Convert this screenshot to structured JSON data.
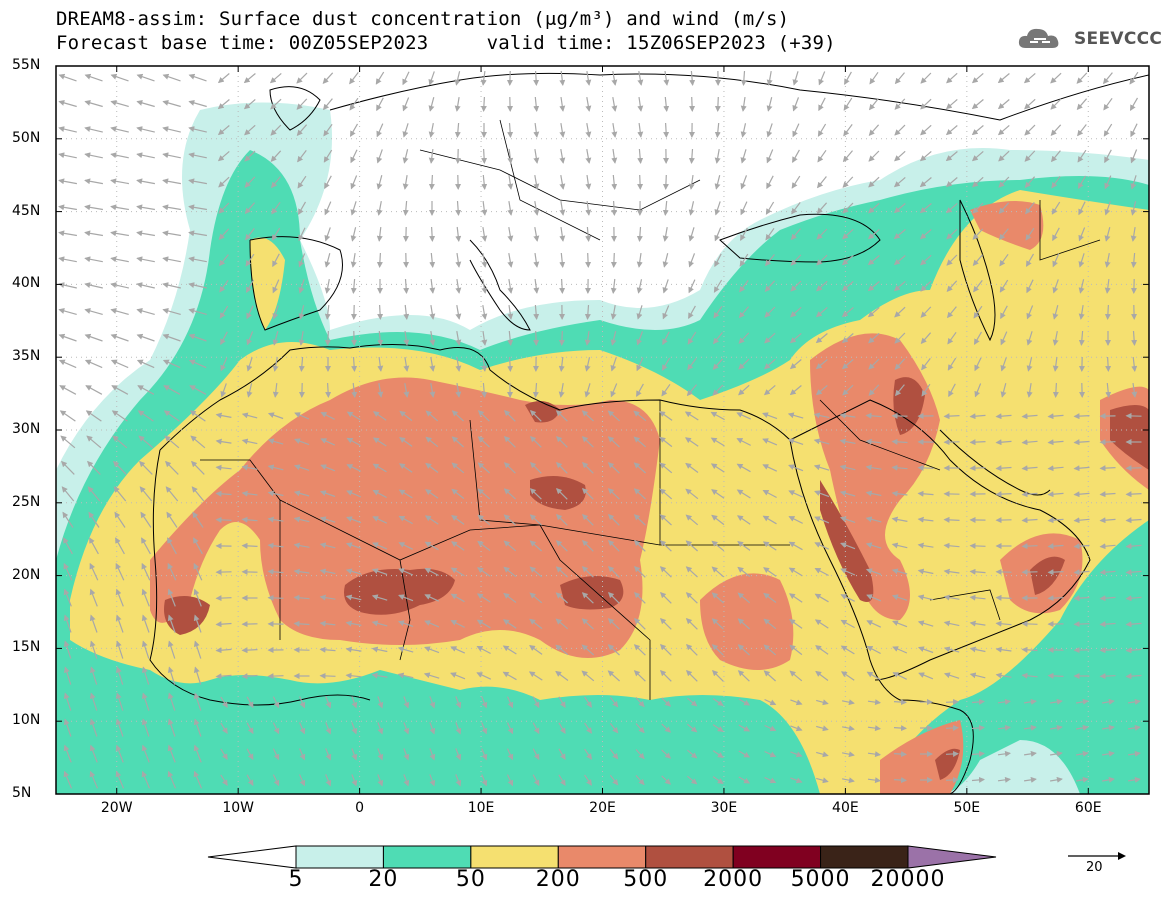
{
  "title": {
    "line1": "DREAM8-assim: Surface dust concentration (μg/m³) and wind (m/s)",
    "line2": "Forecast base time: 00Z05SEP2023     valid time: 15Z06SEP2023 (+39)"
  },
  "logo": {
    "text": "SEEVCCC",
    "icon": "cloud-icon"
  },
  "axes": {
    "lat_labels": [
      "5N",
      "10N",
      "15N",
      "20N",
      "25N",
      "30N",
      "35N",
      "40N",
      "45N",
      "50N",
      "55N"
    ],
    "lat_values": [
      5,
      10,
      15,
      20,
      25,
      30,
      35,
      40,
      45,
      50,
      55
    ],
    "lon_labels": [
      "20W",
      "10W",
      "0",
      "10E",
      "20E",
      "30E",
      "40E",
      "50E",
      "60E"
    ],
    "lon_values": [
      -20,
      -10,
      0,
      10,
      20,
      30,
      40,
      50,
      60
    ],
    "lon_range": [
      -25,
      65
    ],
    "lat_range": [
      5,
      55
    ],
    "grid": "dotted"
  },
  "colorbar": {
    "labels": [
      "5",
      "20",
      "50",
      "200",
      "500",
      "2000",
      "5000",
      "20000"
    ],
    "colors": [
      "#c8f0ea",
      "#4fdcb4",
      "#f5e070",
      "#e9896a",
      "#b05040",
      "#800020",
      "#3a2318"
    ],
    "low_color": "#ffffff",
    "high_color": "#9b72a8",
    "units": "μg/m³"
  },
  "wind_reference": {
    "value": "20",
    "units": "m/s"
  },
  "colors": {
    "land_outline": "#000000",
    "wind_arrow": "#a8a8a8",
    "background": "#ffffff"
  }
}
